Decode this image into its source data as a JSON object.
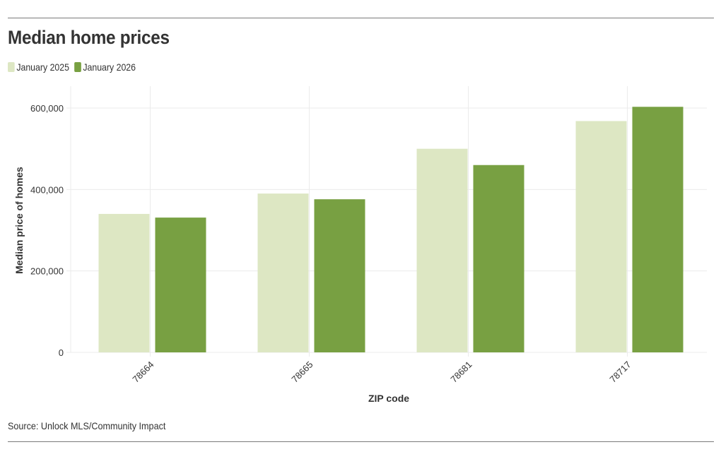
{
  "header": {
    "title": "Median home prices"
  },
  "legend": [
    {
      "label": "January 2025",
      "color": "#dde7c3"
    },
    {
      "label": "January 2026",
      "color": "#78a042"
    }
  ],
  "axes": {
    "ylabel": "Median price of homes",
    "xlabel": "ZIP code",
    "yticks": [
      "0",
      "200,000",
      "400,000",
      "600,000"
    ]
  },
  "footer": {
    "source": "Source: Unlock MLS/Community Impact"
  },
  "chart_data": {
    "type": "bar",
    "title": "Median home prices",
    "xlabel": "ZIP code",
    "ylabel": "Median price of homes",
    "categories": [
      "78664",
      "78665",
      "78681",
      "78717"
    ],
    "series": [
      {
        "name": "January 2025",
        "color": "#dde7c3",
        "values": [
          340000,
          390000,
          500000,
          568000
        ]
      },
      {
        "name": "January 2026",
        "color": "#78a042",
        "values": [
          331000,
          376000,
          460000,
          603000
        ]
      }
    ],
    "ylim": [
      0,
      650000
    ],
    "yticks": [
      0,
      200000,
      400000,
      600000
    ],
    "grid": true,
    "legend_position": "top-left",
    "source": "Source: Unlock MLS/Community Impact"
  }
}
